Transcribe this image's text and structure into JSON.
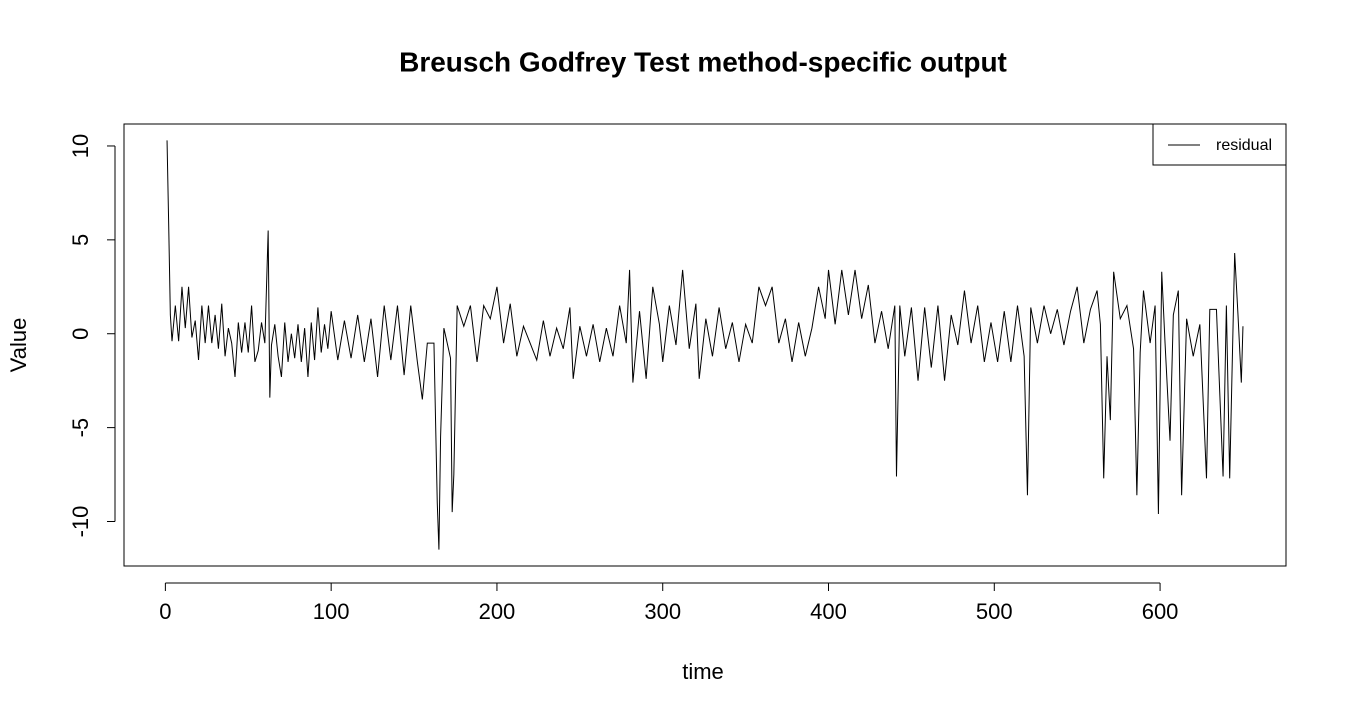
{
  "chart_data": {
    "type": "line",
    "title": "Breusch Godfrey Test method-specific output",
    "x_label": "time",
    "y_label": "Value",
    "x": [
      1,
      2,
      3,
      4,
      6,
      8,
      10,
      12,
      14,
      16,
      18,
      20,
      22,
      24,
      26,
      28,
      30,
      32,
      34,
      36,
      38,
      40,
      42,
      44,
      46,
      48,
      50,
      52,
      54,
      56,
      58,
      60,
      62,
      63,
      64,
      66,
      68,
      70,
      72,
      74,
      76,
      78,
      80,
      82,
      84,
      86,
      88,
      90,
      92,
      94,
      96,
      98,
      100,
      104,
      108,
      112,
      116,
      120,
      124,
      128,
      132,
      136,
      140,
      144,
      148,
      152,
      155,
      158,
      162,
      164,
      165,
      166,
      168,
      170,
      172,
      173,
      174,
      176,
      180,
      184,
      188,
      192,
      196,
      200,
      204,
      208,
      212,
      216,
      220,
      224,
      228,
      232,
      236,
      240,
      244,
      246,
      250,
      254,
      258,
      262,
      266,
      270,
      274,
      278,
      280,
      282,
      286,
      290,
      294,
      298,
      300,
      304,
      308,
      312,
      316,
      320,
      322,
      326,
      330,
      334,
      338,
      342,
      346,
      350,
      354,
      358,
      362,
      366,
      370,
      374,
      378,
      382,
      386,
      390,
      394,
      398,
      400,
      404,
      408,
      412,
      416,
      420,
      424,
      428,
      432,
      436,
      440,
      441,
      443,
      446,
      450,
      454,
      458,
      462,
      466,
      470,
      474,
      478,
      482,
      486,
      490,
      494,
      498,
      502,
      506,
      510,
      514,
      518,
      520,
      522,
      526,
      530,
      534,
      538,
      542,
      546,
      550,
      554,
      558,
      562,
      564,
      566,
      568,
      570,
      572,
      576,
      580,
      584,
      586,
      588,
      590,
      594,
      597,
      599,
      601,
      603,
      606,
      608,
      611,
      613,
      616,
      620,
      624,
      628,
      630,
      634,
      638,
      640,
      642,
      645,
      647,
      649,
      650
    ],
    "series": [
      {
        "name": "residual",
        "color": "#000000",
        "values": [
          10.3,
          5.8,
          1,
          -0.4,
          1.5,
          -0.4,
          2.5,
          0.3,
          2.5,
          -0.2,
          0.7,
          -1.4,
          1.5,
          -0.5,
          1.5,
          -0.5,
          1,
          -0.8,
          1.6,
          -1.2,
          0.3,
          -0.5,
          -2.3,
          0.6,
          -1,
          0.6,
          -1,
          1.5,
          -1.5,
          -0.9,
          0.6,
          -0.5,
          5.5,
          -3.4,
          -0.6,
          0.5,
          -1.2,
          -2.3,
          0.6,
          -1.5,
          0,
          -1.3,
          0.5,
          -1.5,
          0.3,
          -2.3,
          0.6,
          -1.4,
          1.4,
          -1,
          0.5,
          -0.8,
          1.2,
          -1.4,
          0.7,
          -1.3,
          1,
          -1.5,
          0.8,
          -2.3,
          1.5,
          -1.4,
          1.5,
          -2.2,
          1.5,
          -1.5,
          -3.5,
          -0.5,
          -0.5,
          -9,
          -11.5,
          -5.5,
          0.3,
          -0.5,
          -1.3,
          -9.5,
          -7.5,
          1.5,
          0.4,
          1.5,
          -1.5,
          1.5,
          0.8,
          2.5,
          -0.5,
          1.6,
          -1.2,
          0.4,
          -0.5,
          -1.4,
          0.7,
          -1.2,
          0.3,
          -0.8,
          1.4,
          -2.4,
          0.4,
          -1.2,
          0.5,
          -1.5,
          0.3,
          -1.2,
          1.5,
          -0.5,
          3.4,
          -2.6,
          1.2,
          -2.4,
          2.5,
          0.5,
          -1.5,
          1.5,
          -0.6,
          3.4,
          -0.8,
          1.6,
          -2.4,
          0.8,
          -1.2,
          1.4,
          -0.8,
          0.6,
          -1.5,
          0.5,
          -0.5,
          2.5,
          1.5,
          2.5,
          -0.5,
          0.8,
          -1.5,
          0.6,
          -1.2,
          0.3,
          2.5,
          0.8,
          3.4,
          0.5,
          3.4,
          1,
          3.4,
          0.8,
          2.6,
          -0.5,
          1.2,
          -0.8,
          1.5,
          -7.6,
          1.5,
          -1.2,
          1.4,
          -2.5,
          1.4,
          -1.8,
          1.5,
          -2.5,
          1,
          -0.6,
          2.3,
          -0.5,
          1.5,
          -1.5,
          0.6,
          -1.5,
          1.2,
          -1.5,
          1.5,
          -1.2,
          -8.6,
          1.4,
          -0.5,
          1.5,
          0,
          1.3,
          -0.6,
          1.2,
          2.5,
          -0.5,
          1.3,
          2.3,
          0.5,
          -7.7,
          -1.2,
          -4.6,
          3.3,
          0.8,
          1.5,
          -0.8,
          -8.6,
          -1,
          2.3,
          -0.5,
          1.5,
          -9.6,
          3.3,
          -0.5,
          -5.7,
          1,
          2.3,
          -8.6,
          0.8,
          -1.2,
          0.5,
          -7.7,
          1.3,
          1.3,
          -7.6,
          1.5,
          -7.7,
          4.3,
          1,
          -2.6,
          0.4
        ]
      }
    ],
    "xlim": [
      -24.96,
      675.96
    ],
    "ylim": [
      -12.37,
      11.17
    ],
    "xticks": [
      0,
      100,
      200,
      300,
      400,
      500,
      600
    ],
    "yticks": [
      -10,
      -5,
      0,
      5,
      10
    ],
    "legend": "topright"
  }
}
